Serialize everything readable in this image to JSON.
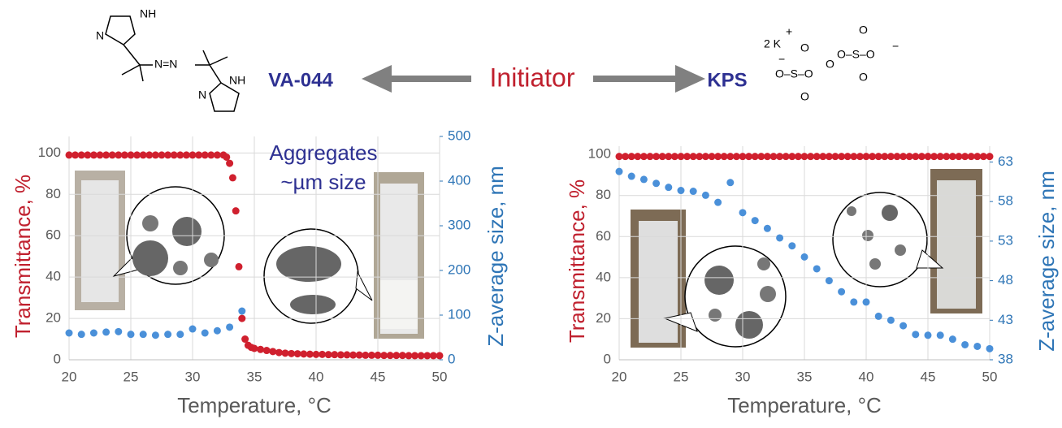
{
  "header": {
    "initiator": "Initiator",
    "left_name": "VA-044",
    "right_name": "KPS",
    "left_structure": [
      "NH",
      "N",
      "N=N",
      "NH",
      "N"
    ],
    "right_structure": [
      "2 K",
      "+",
      "O",
      "O",
      "O–S–O",
      "O",
      "O–S–O",
      "O",
      "O",
      "−",
      "−"
    ]
  },
  "chart_data": [
    {
      "type": "scatter",
      "xlim": [
        20,
        50
      ],
      "xticks": [
        20,
        25,
        30,
        35,
        40,
        45,
        50
      ],
      "ylim": [
        0,
        108
      ],
      "yticks": [
        0,
        20,
        40,
        60,
        80,
        100
      ],
      "y2lim": [
        0,
        500
      ],
      "y2ticks": [
        0,
        100,
        200,
        300,
        400,
        500
      ],
      "xlabel": "Temperature, °C",
      "ylabel": "Transmittance, %",
      "y2label": "Z-average size, nm",
      "annotation": [
        "Aggregates",
        "~µm size"
      ],
      "grid": true,
      "series": [
        {
          "color": "#d0202e",
          "axis": "y",
          "x": [
            20,
            20.5,
            21,
            21.5,
            22,
            22.5,
            23,
            23.5,
            24,
            24.5,
            25,
            25.5,
            26,
            26.5,
            27,
            27.5,
            28,
            28.5,
            29,
            29.5,
            30,
            30.5,
            31,
            31.5,
            32,
            32.5,
            32.75,
            33,
            33.25,
            33.5,
            33.75,
            34,
            34.25,
            34.5,
            34.75,
            35,
            35.5,
            36,
            36.5,
            37,
            37.5,
            38,
            38.5,
            39,
            39.5,
            40,
            40.5,
            41,
            41.5,
            42,
            42.5,
            43,
            43.5,
            44,
            44.5,
            45,
            45.5,
            46,
            46.5,
            47,
            47.5,
            48,
            48.5,
            49,
            49.5,
            50
          ],
          "values": [
            99,
            99,
            99,
            99,
            99,
            99,
            99,
            99,
            99,
            99,
            99,
            99,
            99,
            99,
            99,
            99,
            99,
            99,
            99,
            99,
            99,
            99,
            99,
            99,
            99,
            99,
            98,
            95,
            88,
            72,
            45,
            20,
            10,
            7,
            6,
            5.5,
            5,
            4.5,
            4,
            3.5,
            3.2,
            3,
            2.9,
            2.8,
            2.7,
            2.6,
            2.6,
            2.5,
            2.5,
            2.4,
            2.4,
            2.3,
            2.3,
            2.2,
            2.2,
            2.2,
            2.1,
            2.1,
            2.1,
            2.1,
            2,
            2,
            2,
            2,
            2,
            2
          ]
        },
        {
          "color": "#4a90d9",
          "axis": "y2",
          "x": [
            20,
            21,
            22,
            23,
            24,
            25,
            26,
            27,
            28,
            29,
            30,
            31,
            32,
            33,
            34
          ],
          "values": [
            60,
            57,
            60,
            62,
            63,
            57,
            57,
            55,
            57,
            57,
            69,
            60,
            65,
            73,
            109
          ]
        }
      ]
    },
    {
      "type": "scatter",
      "xlim": [
        20,
        50
      ],
      "xticks": [
        20,
        25,
        30,
        35,
        40,
        45,
        50
      ],
      "ylim": [
        0,
        104
      ],
      "yticks": [
        0,
        20,
        40,
        60,
        80,
        100
      ],
      "y2lim": [
        38,
        65
      ],
      "y2ticks": [
        38,
        43,
        48,
        53,
        58,
        63
      ],
      "xlabel": "Temperature, °C",
      "ylabel": "Transmittance, %",
      "y2label": "Z-average size, nm",
      "grid": true,
      "series": [
        {
          "color": "#d0202e",
          "axis": "y",
          "x": [
            20,
            20.5,
            21,
            21.5,
            22,
            22.5,
            23,
            23.5,
            24,
            24.5,
            25,
            25.5,
            26,
            26.5,
            27,
            27.5,
            28,
            28.5,
            29,
            29.5,
            30,
            30.5,
            31,
            31.5,
            32,
            32.5,
            33,
            33.5,
            34,
            34.5,
            35,
            35.5,
            36,
            36.5,
            37,
            37.5,
            38,
            38.5,
            39,
            39.5,
            40,
            40.5,
            41,
            41.5,
            42,
            42.5,
            43,
            43.5,
            44,
            44.5,
            45,
            45.5,
            46,
            46.5,
            47,
            47.5,
            48,
            48.5,
            49,
            49.5,
            50
          ],
          "values": [
            99,
            99,
            99,
            99,
            99,
            99,
            99,
            99,
            99,
            99,
            99,
            99,
            99,
            99,
            99,
            99,
            99,
            99,
            99,
            99,
            99,
            99,
            99,
            99,
            99,
            99,
            99,
            99,
            99,
            99,
            99,
            99,
            99,
            99,
            99,
            99,
            99,
            99,
            99,
            99,
            99,
            99,
            99,
            99,
            99,
            99,
            99,
            99,
            99,
            99,
            99,
            99,
            99,
            99,
            99,
            99,
            99,
            99,
            99,
            99,
            99
          ]
        },
        {
          "color": "#4a90d9",
          "axis": "y2",
          "x": [
            20,
            21,
            22,
            23,
            24,
            25,
            26,
            27,
            28,
            29,
            30,
            31,
            32,
            33,
            34,
            35,
            36,
            37,
            38,
            39,
            40,
            41,
            42,
            43,
            44,
            45,
            46,
            47,
            48,
            49,
            50
          ],
          "values": [
            61.8,
            61.2,
            60.8,
            60.3,
            59.8,
            59.4,
            59.3,
            58.8,
            57.9,
            60.4,
            56.6,
            55.6,
            54.6,
            53.4,
            52.4,
            51,
            49.5,
            48,
            46.6,
            45.3,
            45.3,
            43.5,
            43,
            42.3,
            41.2,
            41.1,
            41.1,
            40.6,
            39.9,
            39.7,
            39.4
          ]
        }
      ]
    }
  ]
}
